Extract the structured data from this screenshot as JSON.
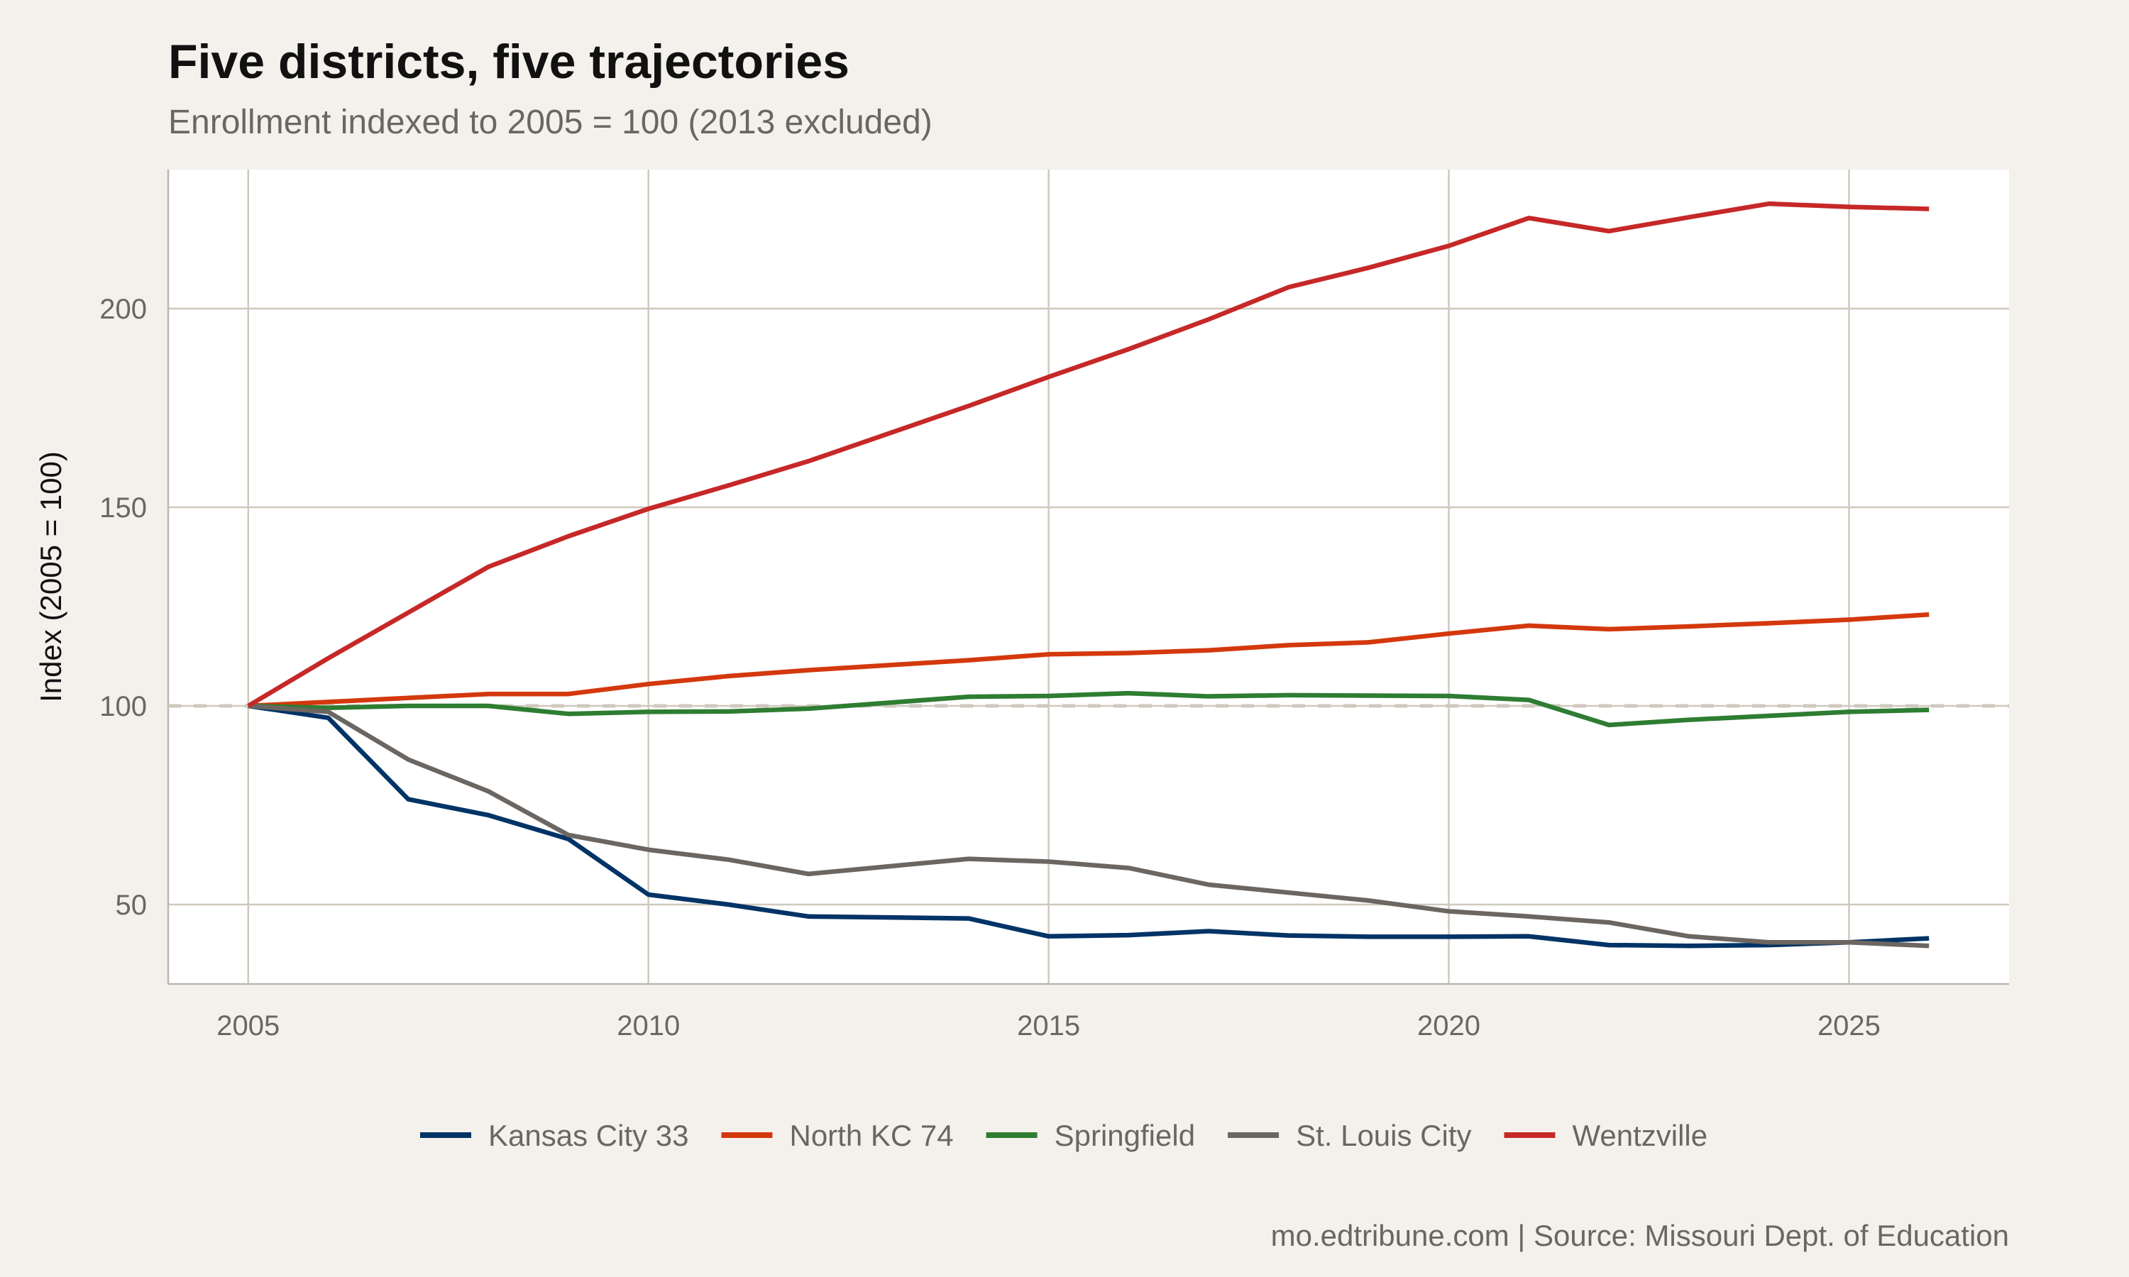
{
  "chart_data": {
    "type": "line",
    "title": "Five districts, five trajectories",
    "subtitle": "Enrollment indexed to 2005 = 100 (2013 excluded)",
    "xlabel": "",
    "ylabel": "Index (2005 = 100)",
    "caption": "mo.edtribune.com | Source: Missouri Dept. of Education",
    "xlim": [
      2004,
      2027
    ],
    "ylim": [
      30,
      235
    ],
    "xticks": [
      2005,
      2010,
      2015,
      2020,
      2025
    ],
    "yticks": [
      50,
      100,
      150,
      200
    ],
    "grid": true,
    "legend_position": "bottom",
    "reference_line": {
      "y": 100,
      "style": "dashed",
      "color": "#cfc8bd"
    },
    "x": [
      2005,
      2006,
      2007,
      2008,
      2009,
      2010,
      2011,
      2012,
      2014,
      2015,
      2016,
      2017,
      2018,
      2019,
      2020,
      2021,
      2022,
      2023,
      2024,
      2025,
      2026
    ],
    "series": [
      {
        "name": "Kansas City 33",
        "color": "#003366",
        "values": [
          100,
          97,
          76.5,
          72.5,
          66.5,
          52.5,
          50,
          47,
          46.5,
          42,
          42.3,
          43.3,
          42.2,
          41.9,
          41.9,
          42,
          39.8,
          39.6,
          39.8,
          40.5,
          41.5
        ]
      },
      {
        "name": "North KC 74",
        "color": "#d4380d",
        "values": [
          100,
          101,
          102,
          103,
          103,
          105.5,
          107.5,
          109,
          111.5,
          113,
          113.3,
          114,
          115.3,
          116,
          118.2,
          120.2,
          119.3,
          120,
          120.8,
          121.7,
          123
        ]
      },
      {
        "name": "Springfield",
        "color": "#2e7d32",
        "values": [
          100,
          99.5,
          100,
          100,
          98,
          98.5,
          98.6,
          99.3,
          102.3,
          102.5,
          103.2,
          102.4,
          102.7,
          102.6,
          102.5,
          101.5,
          95.2,
          96.5,
          97.5,
          98.5,
          99
        ]
      },
      {
        "name": "St. Louis City",
        "color": "#6b6661",
        "values": [
          100,
          98.5,
          86.5,
          78.5,
          67.5,
          63.8,
          61.3,
          57.7,
          61.5,
          60.8,
          59.2,
          55,
          53,
          51,
          48.3,
          47,
          45.5,
          42,
          40.5,
          40.5,
          39.6
        ]
      },
      {
        "name": "Wentzville",
        "color": "#c62828",
        "values": [
          100,
          112,
          123.5,
          135,
          142.7,
          149.6,
          155.5,
          161.6,
          175.5,
          182.8,
          189.8,
          197.3,
          205.4,
          210.3,
          215.8,
          222.8,
          219.5,
          223,
          226.4,
          225.6,
          225.1
        ]
      }
    ]
  }
}
